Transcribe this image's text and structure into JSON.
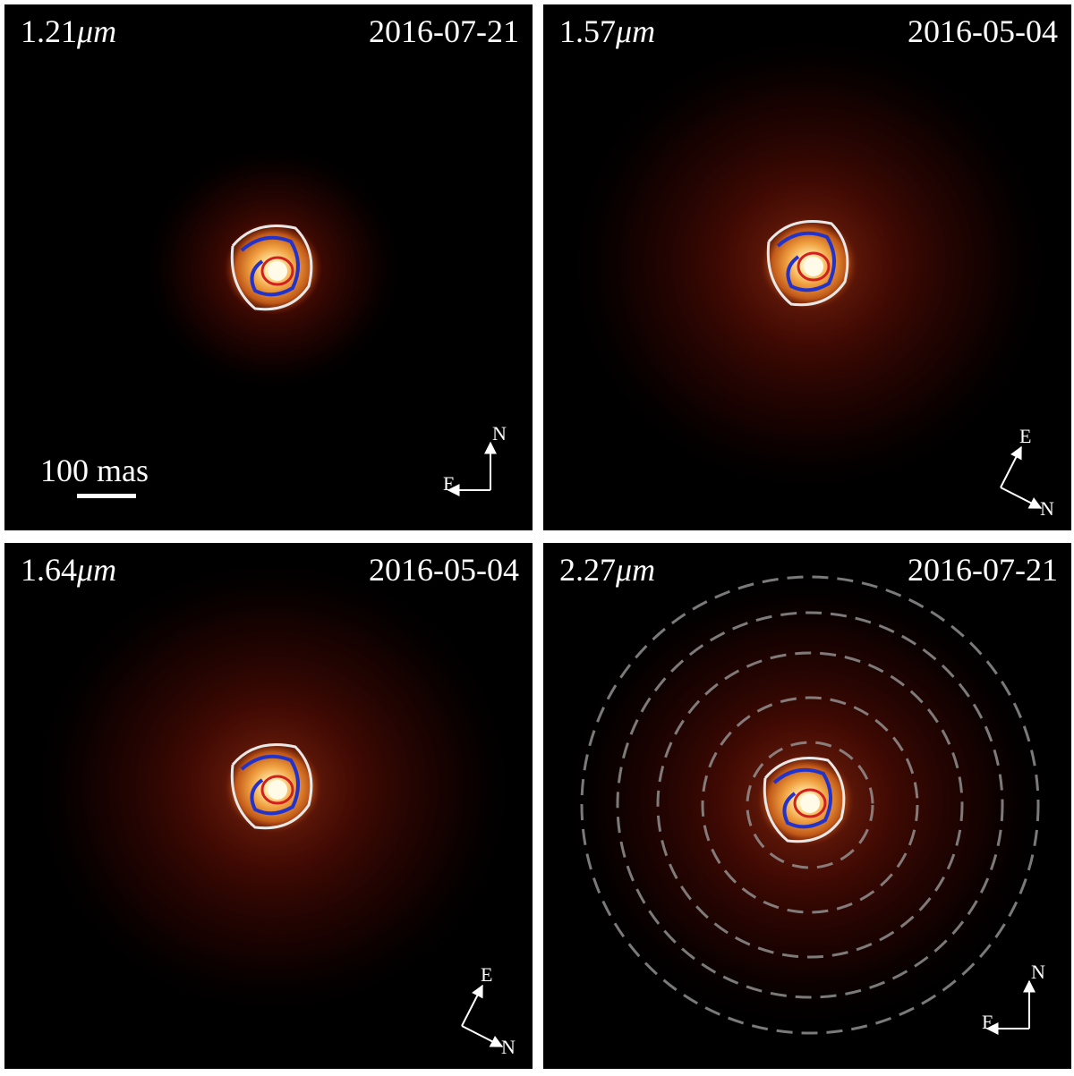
{
  "panels": [
    {
      "wavelength_value": "1.21",
      "wavelength_unit": "μm",
      "date": "2016-07-21",
      "compass": {
        "north": "N",
        "east": "E"
      }
    },
    {
      "wavelength_value": "1.57",
      "wavelength_unit": "μm",
      "date": "2016-05-04",
      "compass": {
        "north": "N",
        "east": "E"
      }
    },
    {
      "wavelength_value": "1.64",
      "wavelength_unit": "μm",
      "date": "2016-05-04",
      "compass": {
        "north": "N",
        "east": "E"
      }
    },
    {
      "wavelength_value": "2.27",
      "wavelength_unit": "μm",
      "date": "2016-07-21",
      "compass": {
        "north": "N",
        "east": "E"
      }
    }
  ],
  "scale_bar": {
    "label": "100 mas"
  }
}
